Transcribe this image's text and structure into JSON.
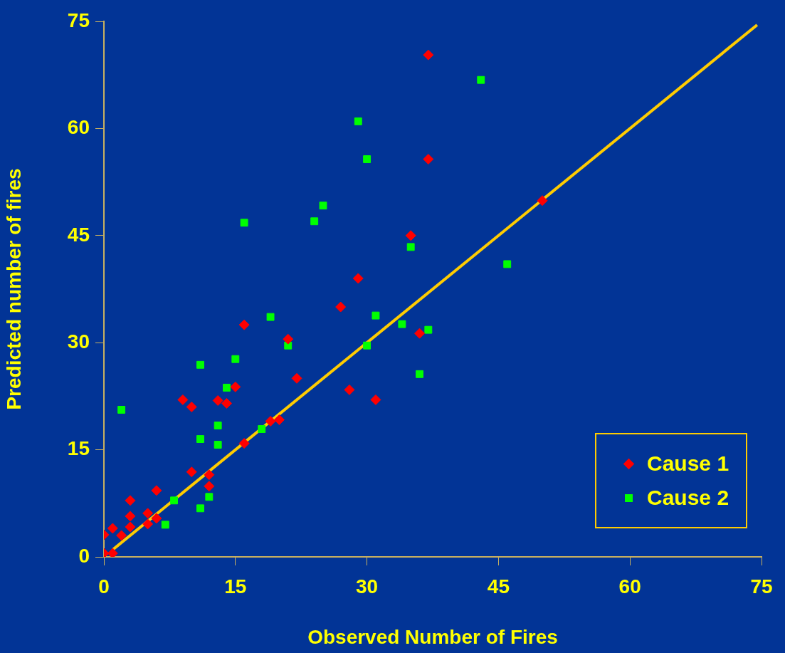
{
  "chart_data": {
    "type": "scatter",
    "xlabel": "Observed Number of Fires",
    "ylabel": "Predicted number of fires",
    "xlim": [
      0,
      75
    ],
    "ylim": [
      0,
      75
    ],
    "xticks": [
      0,
      15,
      30,
      45,
      60,
      75
    ],
    "yticks": [
      0,
      15,
      30,
      45,
      60,
      75
    ],
    "grid": false,
    "legend": "bottom right",
    "series": [
      {
        "name": "Cause 1",
        "color": "#ff0000",
        "marker": "diamond",
        "x": [
          0,
          0,
          1,
          1,
          2,
          3,
          3,
          3,
          5,
          5,
          6,
          6,
          9,
          10,
          10,
          12,
          12,
          13,
          14,
          15,
          16,
          16,
          19,
          20,
          21,
          22,
          27,
          28,
          29,
          31,
          35,
          36,
          37,
          37,
          50
        ],
        "values": [
          3.1,
          0.5,
          4,
          0.5,
          3,
          7.9,
          5.7,
          4.2,
          6.1,
          4.6,
          9.3,
          5.4,
          22,
          21,
          11.9,
          11.5,
          9.9,
          21.9,
          21.5,
          23.8,
          32.5,
          15.9,
          19,
          19.2,
          30.5,
          25,
          35,
          23.4,
          39,
          22,
          45,
          31.3,
          70.3,
          55.7,
          49.9
        ]
      },
      {
        "name": "Cause 2",
        "color": "#00ff00",
        "marker": "square",
        "x": [
          2,
          7,
          8,
          11,
          11,
          11,
          12,
          13,
          13,
          14,
          15,
          16,
          18,
          19,
          21,
          24,
          25,
          29,
          30,
          30,
          31,
          34,
          35,
          36,
          37,
          43,
          46
        ],
        "values": [
          20.6,
          4.5,
          7.9,
          26.9,
          16.5,
          6.8,
          8.4,
          18.4,
          15.7,
          23.7,
          27.7,
          46.8,
          17.9,
          33.6,
          29.6,
          47,
          49.2,
          61,
          55.7,
          29.6,
          33.8,
          32.6,
          43.4,
          25.6,
          31.8,
          66.8,
          41
        ]
      },
      {
        "type": "line",
        "color": "#ffcc00",
        "marker": "none",
        "x": [
          1,
          74.5
        ],
        "values": [
          1,
          74.5
        ]
      }
    ]
  }
}
